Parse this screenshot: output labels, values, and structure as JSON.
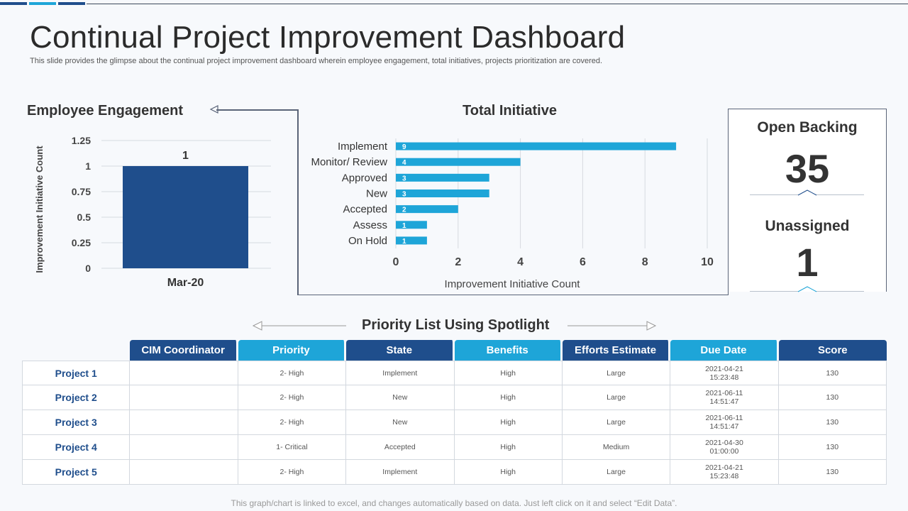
{
  "header": {
    "title": "Continual Project Improvement Dashboard",
    "subtitle": "This slide provides the glimpse about the continual project improvement dashboard wherein employee engagement, total initiatives, projects prioritization are covered."
  },
  "colors": {
    "dark_blue": "#1f4e8c",
    "light_blue": "#1ea5d8",
    "bar_blue": "#1ea5d8"
  },
  "employee_engagement": {
    "title": "Employee Engagement"
  },
  "total_initiative": {
    "title": "Total Initiative"
  },
  "stats": {
    "open_backing_label": "Open Backing",
    "open_backing_value": "35",
    "unassigned_label": "Unassigned",
    "unassigned_value": "1"
  },
  "chart_data": [
    {
      "type": "bar",
      "title": "Employee Engagement",
      "categories": [
        "Mar-20"
      ],
      "values": [
        1
      ],
      "data_labels": [
        "1"
      ],
      "ylabel": "Improvement Initiative Count",
      "xlabel": "",
      "ylim": [
        0,
        1.25
      ],
      "yticks": [
        "0",
        "0.25",
        "0.5",
        "0.75",
        "1",
        "1.25"
      ],
      "grid": true
    },
    {
      "type": "bar",
      "orientation": "horizontal",
      "title": "Total Initiative",
      "categories": [
        "Implement",
        "Monitor/ Review",
        "Approved",
        "New",
        "Accepted",
        "Assess",
        "On Hold"
      ],
      "values": [
        9,
        4,
        3,
        3,
        2,
        1,
        1
      ],
      "data_labels": [
        "9",
        "4",
        "3",
        "3",
        "2",
        "1",
        "1"
      ],
      "xlabel": "Improvement Initiative Count",
      "xlim": [
        0,
        10
      ],
      "xticks": [
        "0",
        "2",
        "4",
        "6",
        "8",
        "10"
      ],
      "grid": true
    }
  ],
  "priority_list": {
    "title": "Priority List Using Spotlight",
    "columns": [
      "CIM Coordinator",
      "Priority",
      "State",
      "Benefits",
      "Efforts Estimate",
      "Due Date",
      "Score"
    ],
    "rows": [
      {
        "name": "Project 1",
        "coordinator": "",
        "priority": "2- High",
        "state": "Implement",
        "benefits": "High",
        "effort": "Large",
        "due_date": "2021-04-21",
        "due_time": "15:23:48",
        "score": "130"
      },
      {
        "name": "Project 2",
        "coordinator": "",
        "priority": "2- High",
        "state": "New",
        "benefits": "High",
        "effort": "Large",
        "due_date": "2021-06-11",
        "due_time": "14:51:47",
        "score": "130"
      },
      {
        "name": "Project 3",
        "coordinator": "",
        "priority": "2- High",
        "state": "New",
        "benefits": "High",
        "effort": "Large",
        "due_date": "2021-06-11",
        "due_time": "14:51:47",
        "score": "130"
      },
      {
        "name": "Project 4",
        "coordinator": "",
        "priority": "1- Critical",
        "state": "Accepted",
        "benefits": "High",
        "effort": "Medium",
        "due_date": "2021-04-30",
        "due_time": "01:00:00",
        "score": "130"
      },
      {
        "name": "Project 5",
        "coordinator": "",
        "priority": "2- High",
        "state": "Implement",
        "benefits": "High",
        "effort": "Large",
        "due_date": "2021-04-21",
        "due_time": "15:23:48",
        "score": "130"
      }
    ]
  },
  "footer": {
    "note": "This graph/chart is linked to excel, and changes automatically based on data. Just left click on it and select “Edit Data”."
  }
}
